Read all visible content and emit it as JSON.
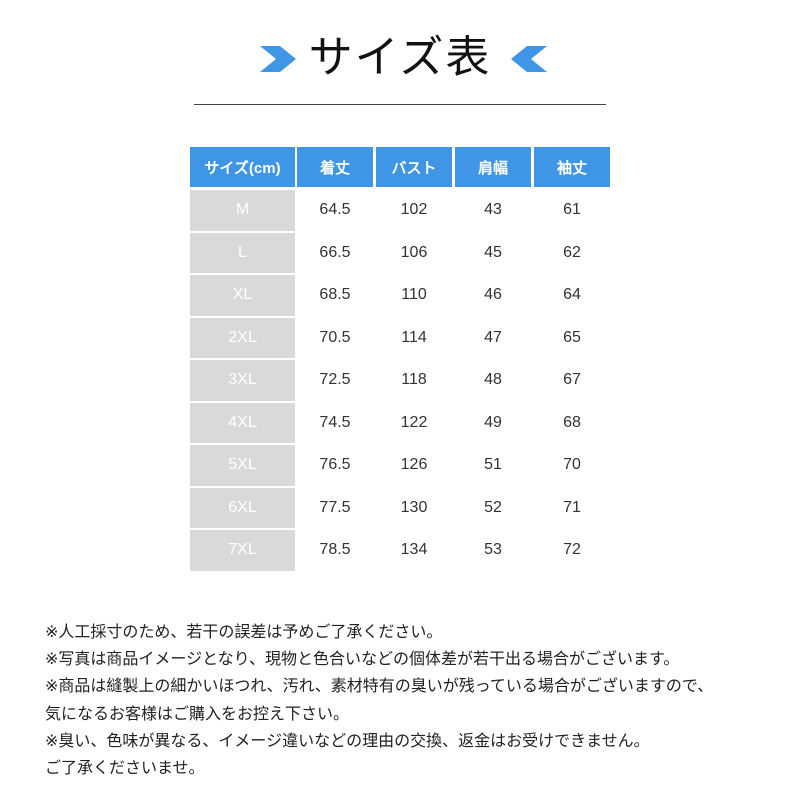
{
  "title": "サイズ表",
  "accent_color": "#3f95e6",
  "size_cell_color": "#d9d9d9",
  "icons": {
    "left": "chevron-right-icon",
    "right": "chevron-left-icon"
  },
  "table": {
    "headers": [
      "サイズ(cm)",
      "着丈",
      "バスト",
      "肩幅",
      "袖丈"
    ],
    "rows": [
      [
        "M",
        "64.5",
        "102",
        "43",
        "61"
      ],
      [
        "L",
        "66.5",
        "106",
        "45",
        "62"
      ],
      [
        "XL",
        "68.5",
        "110",
        "46",
        "64"
      ],
      [
        "2XL",
        "70.5",
        "114",
        "47",
        "65"
      ],
      [
        "3XL",
        "72.5",
        "118",
        "48",
        "67"
      ],
      [
        "4XL",
        "74.5",
        "122",
        "49",
        "68"
      ],
      [
        "5XL",
        "76.5",
        "126",
        "51",
        "70"
      ],
      [
        "6XL",
        "77.5",
        "130",
        "52",
        "71"
      ],
      [
        "7XL",
        "78.5",
        "134",
        "53",
        "72"
      ]
    ]
  },
  "notes": [
    "※人工採寸のため、若干の誤差は予めご了承ください。",
    "※写真は商品イメージとなり、現物と色合いなどの個体差が若干出る場合がございます。",
    "※商品は縫製上の細かいほつれ、汚れ、素材特有の臭いが残っている場合がございますので、",
    "気になるお客様はご購入をお控え下さい。",
    "※臭い、色味が異なる、イメージ違いなどの理由の交換、返金はお受けできません。",
    "ご了承くださいませ。"
  ]
}
